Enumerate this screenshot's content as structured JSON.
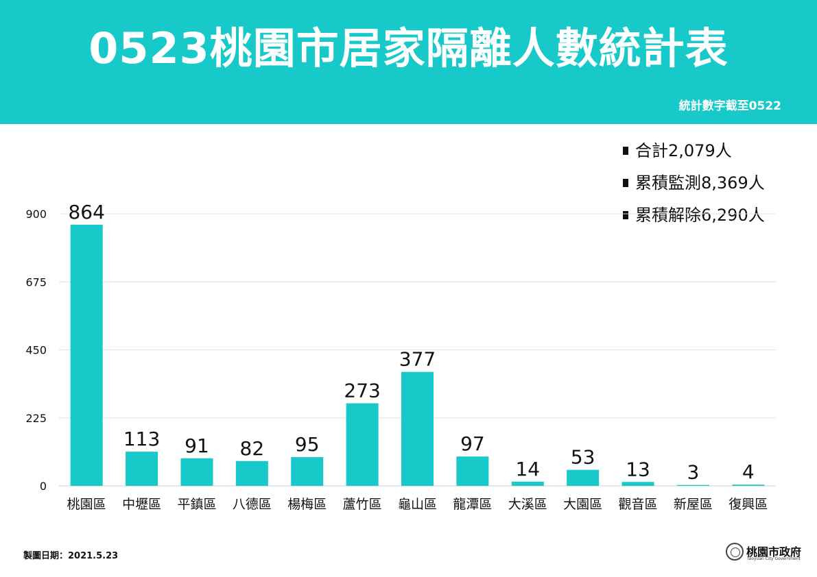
{
  "header": {
    "title": "0523桃園市居家隔離人數統計表",
    "note": "統計數字截至0522",
    "background": "#18c9c9"
  },
  "summary": [
    {
      "label": "合計",
      "value": "2,079",
      "unit": "人"
    },
    {
      "label": "累積監測",
      "value": "8,369",
      "unit": "人"
    },
    {
      "label": "累積解除",
      "value": "6,290",
      "unit": "人"
    }
  ],
  "chart_data": {
    "type": "bar",
    "categories": [
      "桃園區",
      "中壢區",
      "平鎮區",
      "八德區",
      "楊梅區",
      "蘆竹區",
      "龜山區",
      "龍潭區",
      "大溪區",
      "大園區",
      "觀音區",
      "新屋區",
      "復興區"
    ],
    "values": [
      864,
      113,
      91,
      82,
      95,
      273,
      377,
      97,
      14,
      53,
      13,
      3,
      4
    ],
    "yticks": [
      0,
      225,
      450,
      675,
      900
    ],
    "ylim": [
      0,
      900
    ],
    "grid": true,
    "legend": "none",
    "bar_color": "#18c9c9"
  },
  "footer": {
    "date_label": "製圖日期：2021.5.23",
    "org_name": "桃園市政府",
    "org_sub": "Taoyuan City Government"
  }
}
